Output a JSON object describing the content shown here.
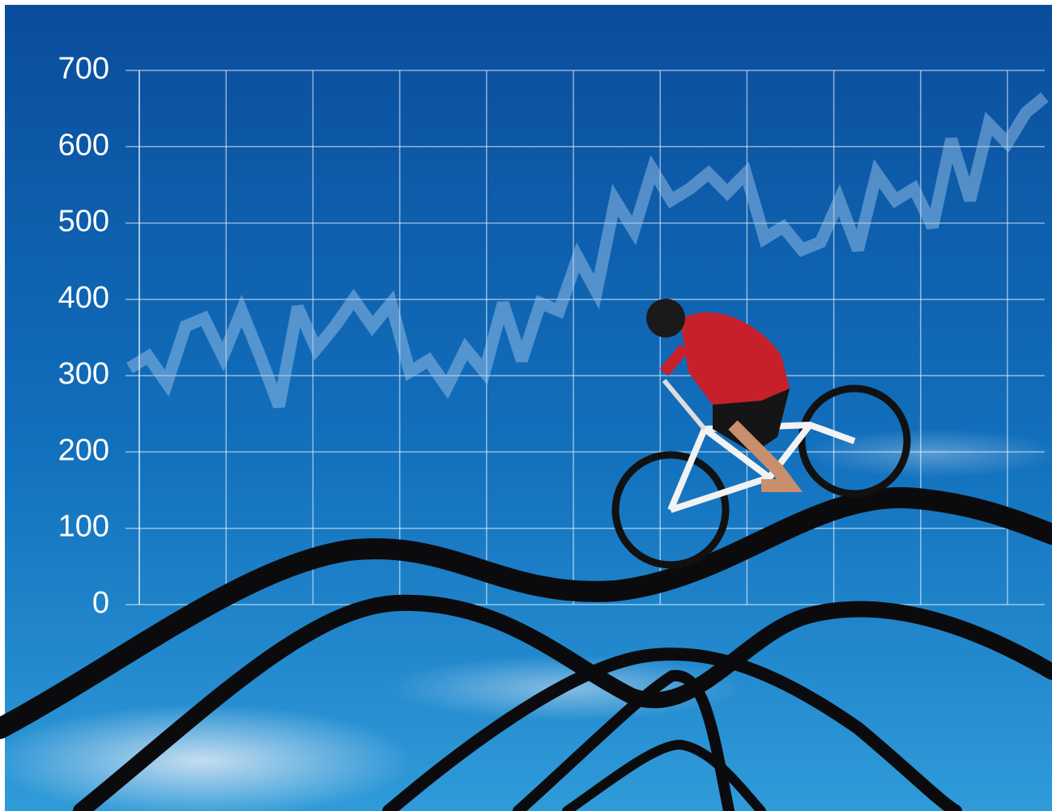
{
  "chart_data": {
    "type": "line",
    "categories": [
      null,
      null,
      null,
      null,
      null,
      null,
      null,
      null,
      null,
      null,
      null,
      null,
      null,
      null,
      null,
      null,
      null,
      null,
      null,
      null,
      null,
      null,
      null,
      null,
      null,
      null,
      null,
      null,
      null,
      null,
      null,
      null,
      null,
      null,
      null,
      null,
      null,
      null,
      null,
      null,
      null,
      null,
      null,
      null,
      null,
      null,
      null,
      null,
      null,
      null
    ],
    "values": [
      310,
      325,
      290,
      365,
      375,
      325,
      385,
      325,
      260,
      390,
      335,
      365,
      400,
      365,
      395,
      305,
      320,
      285,
      335,
      305,
      395,
      320,
      395,
      385,
      455,
      410,
      530,
      490,
      570,
      530,
      545,
      565,
      540,
      565,
      480,
      495,
      465,
      475,
      530,
      465,
      565,
      530,
      545,
      495,
      610,
      530,
      630,
      605,
      645,
      665
    ],
    "color": "#a9cdf0",
    "ylim": [
      0,
      700
    ],
    "yticks": [
      0,
      100,
      200,
      300,
      400,
      500,
      600,
      700
    ],
    "grid": true
  }
}
